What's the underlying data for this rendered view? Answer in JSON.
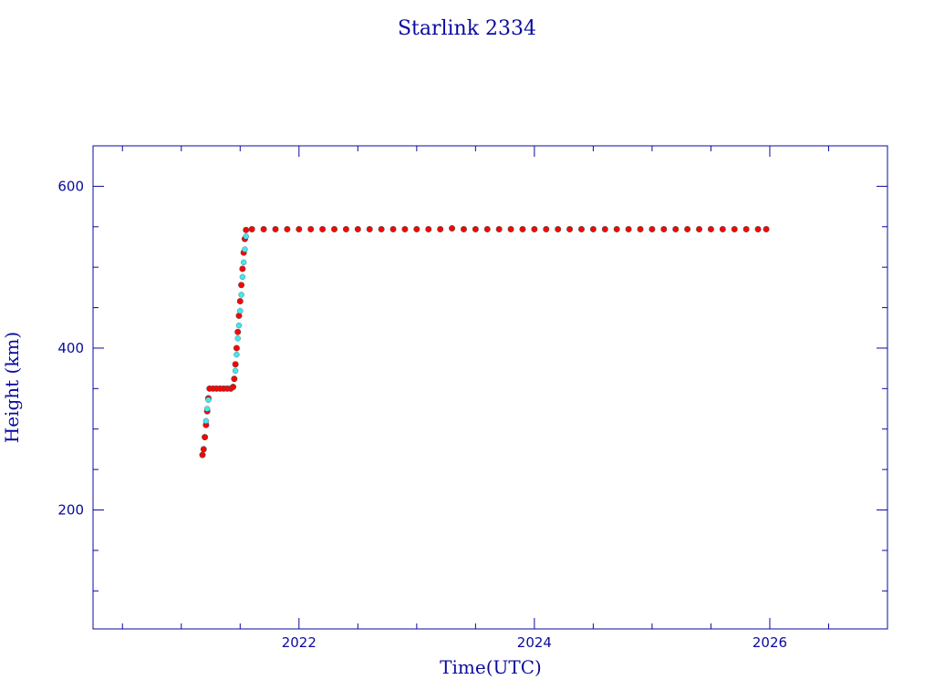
{
  "chart_data": {
    "type": "scatter",
    "title": "Starlink 2334",
    "xlabel": "Time(UTC)",
    "ylabel": "Height (km)",
    "xlim": [
      2020.25,
      2027.0
    ],
    "ylim": [
      53,
      650
    ],
    "x_major_ticks": [
      2022,
      2024,
      2026
    ],
    "x_tick_labels": [
      "2022",
      "2024",
      "2026"
    ],
    "x_minor_step": 0.5,
    "y_major_ticks": [
      200,
      400,
      600
    ],
    "y_tick_labels": [
      "200",
      "400",
      "600"
    ],
    "y_minor_step": 50,
    "grid": false,
    "colors": {
      "frame": "#0a0aa0",
      "primary_series": "#ff0000",
      "secondary_series": "#40e8f0",
      "marker_edge": "#555555"
    },
    "series": [
      {
        "color": "#ff0000",
        "points": [
          [
            2021.18,
            268
          ],
          [
            2021.19,
            275
          ],
          [
            2021.2,
            290
          ],
          [
            2021.21,
            305
          ],
          [
            2021.22,
            322
          ],
          [
            2021.23,
            338
          ],
          [
            2021.24,
            350
          ],
          [
            2021.27,
            350
          ],
          [
            2021.3,
            350
          ],
          [
            2021.33,
            350
          ],
          [
            2021.36,
            350
          ],
          [
            2021.39,
            350
          ],
          [
            2021.42,
            350
          ],
          [
            2021.44,
            352
          ],
          [
            2021.45,
            362
          ],
          [
            2021.46,
            380
          ],
          [
            2021.47,
            400
          ],
          [
            2021.48,
            420
          ],
          [
            2021.49,
            440
          ],
          [
            2021.5,
            458
          ],
          [
            2021.51,
            478
          ],
          [
            2021.52,
            498
          ],
          [
            2021.53,
            518
          ],
          [
            2021.54,
            535
          ],
          [
            2021.55,
            546
          ],
          [
            2021.6,
            547
          ],
          [
            2021.7,
            547
          ],
          [
            2021.8,
            547
          ],
          [
            2021.9,
            547
          ],
          [
            2022.0,
            547
          ],
          [
            2022.1,
            547
          ],
          [
            2022.2,
            547
          ],
          [
            2022.3,
            547
          ],
          [
            2022.4,
            547
          ],
          [
            2022.5,
            547
          ],
          [
            2022.6,
            547
          ],
          [
            2022.7,
            547
          ],
          [
            2022.8,
            547
          ],
          [
            2022.9,
            547
          ],
          [
            2023.0,
            547
          ],
          [
            2023.1,
            547
          ],
          [
            2023.2,
            547
          ],
          [
            2023.3,
            548
          ],
          [
            2023.4,
            547
          ],
          [
            2023.5,
            547
          ],
          [
            2023.6,
            547
          ],
          [
            2023.7,
            547
          ],
          [
            2023.8,
            547
          ],
          [
            2023.9,
            547
          ],
          [
            2024.0,
            547
          ],
          [
            2024.1,
            547
          ],
          [
            2024.2,
            547
          ],
          [
            2024.3,
            547
          ],
          [
            2024.4,
            547
          ],
          [
            2024.5,
            547
          ],
          [
            2024.6,
            547
          ],
          [
            2024.7,
            547
          ],
          [
            2024.8,
            547
          ],
          [
            2024.9,
            547
          ],
          [
            2025.0,
            547
          ],
          [
            2025.1,
            547
          ],
          [
            2025.2,
            547
          ],
          [
            2025.3,
            547
          ],
          [
            2025.4,
            547
          ],
          [
            2025.5,
            547
          ],
          [
            2025.6,
            547
          ],
          [
            2025.7,
            547
          ],
          [
            2025.8,
            547
          ],
          [
            2025.9,
            547
          ],
          [
            2025.97,
            547
          ]
        ]
      },
      {
        "color": "#40e8f0",
        "points": [
          [
            2021.21,
            310
          ],
          [
            2021.22,
            325
          ],
          [
            2021.23,
            336
          ],
          [
            2021.46,
            372
          ],
          [
            2021.47,
            392
          ],
          [
            2021.48,
            412
          ],
          [
            2021.49,
            428
          ],
          [
            2021.5,
            446
          ],
          [
            2021.51,
            466
          ],
          [
            2021.52,
            488
          ],
          [
            2021.53,
            506
          ],
          [
            2021.54,
            522
          ],
          [
            2021.55,
            538
          ]
        ]
      }
    ]
  }
}
